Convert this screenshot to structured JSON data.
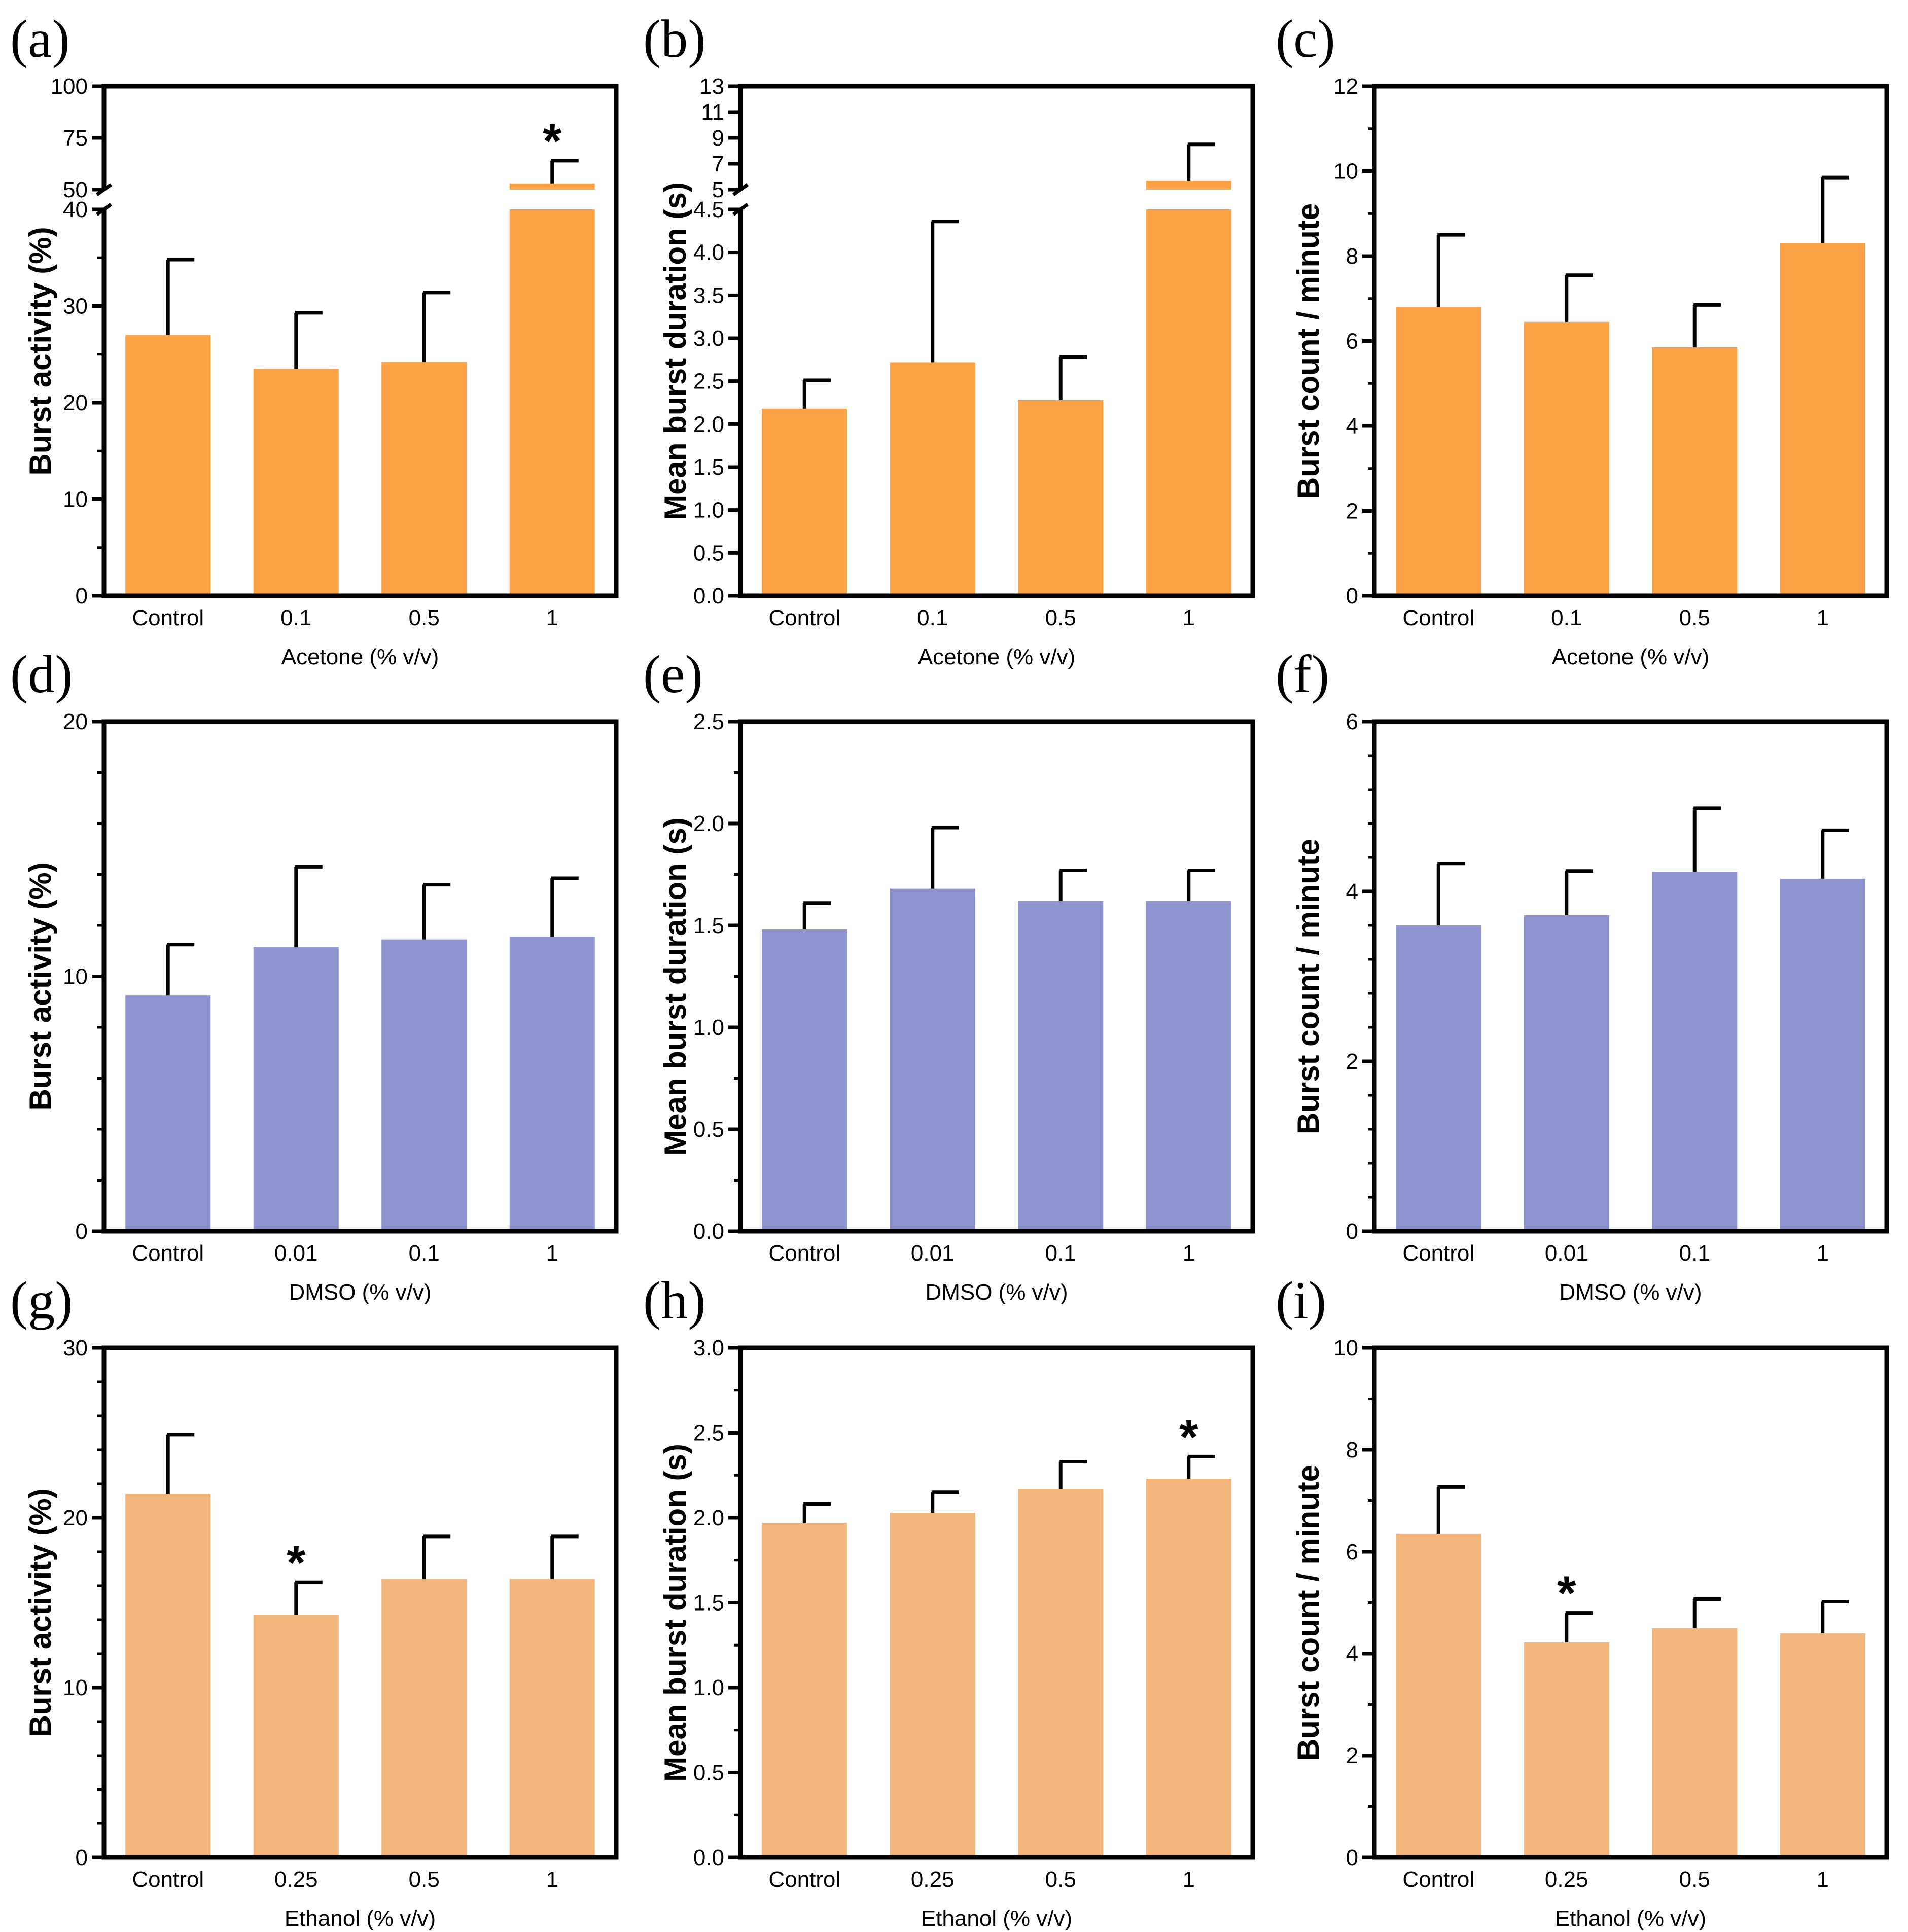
{
  "colors": {
    "acetone": "#FBA246",
    "dmso": "#8C93CF",
    "ethanol": "#F2B67C",
    "axis": "#000000"
  },
  "chart_data": [
    {
      "panel": "(a)",
      "type": "bar",
      "color_key": "acetone",
      "categories": [
        "Control",
        "0.1",
        "0.5",
        "1"
      ],
      "values": [
        27.0,
        23.5,
        24.2,
        53.0
      ],
      "errors": [
        7.8,
        5.8,
        7.2,
        11.0
      ],
      "significant": [
        false,
        false,
        false,
        true
      ],
      "significance_marker": "*",
      "ylabel": "Burst activity (%)",
      "xlabel": "Acetone (% v/v)",
      "axis_break": {
        "lower": [
          0,
          40
        ],
        "upper": [
          50,
          100
        ]
      },
      "yticks_lower": [
        "0",
        "10",
        "20",
        "30",
        "40"
      ],
      "yticks_upper": [
        "50",
        "75",
        "100"
      ]
    },
    {
      "panel": "(b)",
      "type": "bar",
      "color_key": "acetone",
      "categories": [
        "Control",
        "0.1",
        "0.5",
        "1"
      ],
      "values": [
        2.18,
        2.72,
        2.28,
        5.7
      ],
      "errors": [
        0.33,
        1.64,
        0.5,
        2.8
      ],
      "significant": [
        false,
        false,
        false,
        false
      ],
      "significance_marker": "*",
      "ylabel": "Mean burst duration (s)",
      "xlabel": "Acetone (% v/v)",
      "axis_break": {
        "lower": [
          0,
          4.5
        ],
        "upper": [
          5,
          13
        ]
      },
      "yticks_lower": [
        "0.0",
        "0.5",
        "1.0",
        "1.5",
        "2.0",
        "2.5",
        "3.0",
        "3.5",
        "4.0",
        "4.5"
      ],
      "yticks_upper": [
        "5",
        "7",
        "9",
        "11",
        "13"
      ]
    },
    {
      "panel": "(c)",
      "type": "bar",
      "color_key": "acetone",
      "categories": [
        "Control",
        "0.1",
        "0.5",
        "1"
      ],
      "values": [
        6.8,
        6.45,
        5.85,
        8.3
      ],
      "errors": [
        1.7,
        1.1,
        1.0,
        1.55
      ],
      "significant": [
        false,
        false,
        false,
        false
      ],
      "significance_marker": "*",
      "ylabel": "Burst count / minute",
      "xlabel": "Acetone (% v/v)",
      "ylim": [
        0,
        12
      ],
      "yticks": [
        "0",
        "2",
        "4",
        "6",
        "8",
        "10",
        "12"
      ]
    },
    {
      "panel": "(d)",
      "type": "bar",
      "color_key": "dmso",
      "categories": [
        "Control",
        "0.01",
        "0.1",
        "1"
      ],
      "values": [
        9.25,
        11.15,
        11.45,
        11.55
      ],
      "errors": [
        2.0,
        3.15,
        2.15,
        2.3
      ],
      "significant": [
        false,
        false,
        false,
        false
      ],
      "significance_marker": "*",
      "ylabel": "Burst activity (%)",
      "xlabel": "DMSO (% v/v)",
      "ylim": [
        0,
        20
      ],
      "yticks": [
        "0",
        "10",
        "20"
      ]
    },
    {
      "panel": "(e)",
      "type": "bar",
      "color_key": "dmso",
      "categories": [
        "Control",
        "0.01",
        "0.1",
        "1"
      ],
      "values": [
        1.48,
        1.68,
        1.62,
        1.62
      ],
      "errors": [
        0.13,
        0.3,
        0.15,
        0.15
      ],
      "significant": [
        false,
        false,
        false,
        false
      ],
      "significance_marker": "*",
      "ylabel": "Mean burst duration (s)",
      "xlabel": "DMSO (% v/v)",
      "ylim": [
        0,
        2.5
      ],
      "yticks": [
        "0.0",
        "0.5",
        "1.0",
        "1.5",
        "2.0",
        "2.5"
      ]
    },
    {
      "panel": "(f)",
      "type": "bar",
      "color_key": "dmso",
      "categories": [
        "Control",
        "0.01",
        "0.1",
        "1"
      ],
      "values": [
        3.6,
        3.72,
        4.23,
        4.15
      ],
      "errors": [
        0.73,
        0.52,
        0.75,
        0.57
      ],
      "significant": [
        false,
        false,
        false,
        false
      ],
      "significance_marker": "*",
      "ylabel": "Burst count / minute",
      "xlabel": "DMSO (% v/v)",
      "ylim": [
        0,
        6
      ],
      "yticks": [
        "0",
        "2",
        "4",
        "6"
      ]
    },
    {
      "panel": "(g)",
      "type": "bar",
      "color_key": "ethanol",
      "categories": [
        "Control",
        "0.25",
        "0.5",
        "1"
      ],
      "values": [
        21.4,
        14.3,
        16.4,
        16.4
      ],
      "errors": [
        3.5,
        1.9,
        2.5,
        2.5
      ],
      "significant": [
        false,
        true,
        false,
        false
      ],
      "significance_marker": "*",
      "ylabel": "Burst activity (%)",
      "xlabel": "Ethanol (% v/v)",
      "ylim": [
        0,
        30
      ],
      "yticks": [
        "0",
        "10",
        "20",
        "30"
      ]
    },
    {
      "panel": "(h)",
      "type": "bar",
      "color_key": "ethanol",
      "categories": [
        "Control",
        "0.25",
        "0.5",
        "1"
      ],
      "values": [
        1.97,
        2.03,
        2.17,
        2.23
      ],
      "errors": [
        0.11,
        0.12,
        0.16,
        0.13
      ],
      "significant": [
        false,
        false,
        false,
        true
      ],
      "significance_marker": "*",
      "ylabel": "Mean burst duration (s)",
      "xlabel": "Ethanol (% v/v)",
      "ylim": [
        0,
        3.0
      ],
      "yticks": [
        "0.0",
        "0.5",
        "1.0",
        "1.5",
        "2.0",
        "2.5",
        "3.0"
      ]
    },
    {
      "panel": "(i)",
      "type": "bar",
      "color_key": "ethanol",
      "categories": [
        "Control",
        "0.25",
        "0.5",
        "1"
      ],
      "values": [
        6.35,
        4.22,
        4.5,
        4.4
      ],
      "errors": [
        0.92,
        0.58,
        0.57,
        0.62
      ],
      "significant": [
        false,
        true,
        false,
        false
      ],
      "significance_marker": "*",
      "ylabel": "Burst count / minute",
      "xlabel": "Ethanol (% v/v)",
      "ylim": [
        0,
        10
      ],
      "yticks": [
        "0",
        "2",
        "4",
        "6",
        "8",
        "10"
      ]
    }
  ]
}
